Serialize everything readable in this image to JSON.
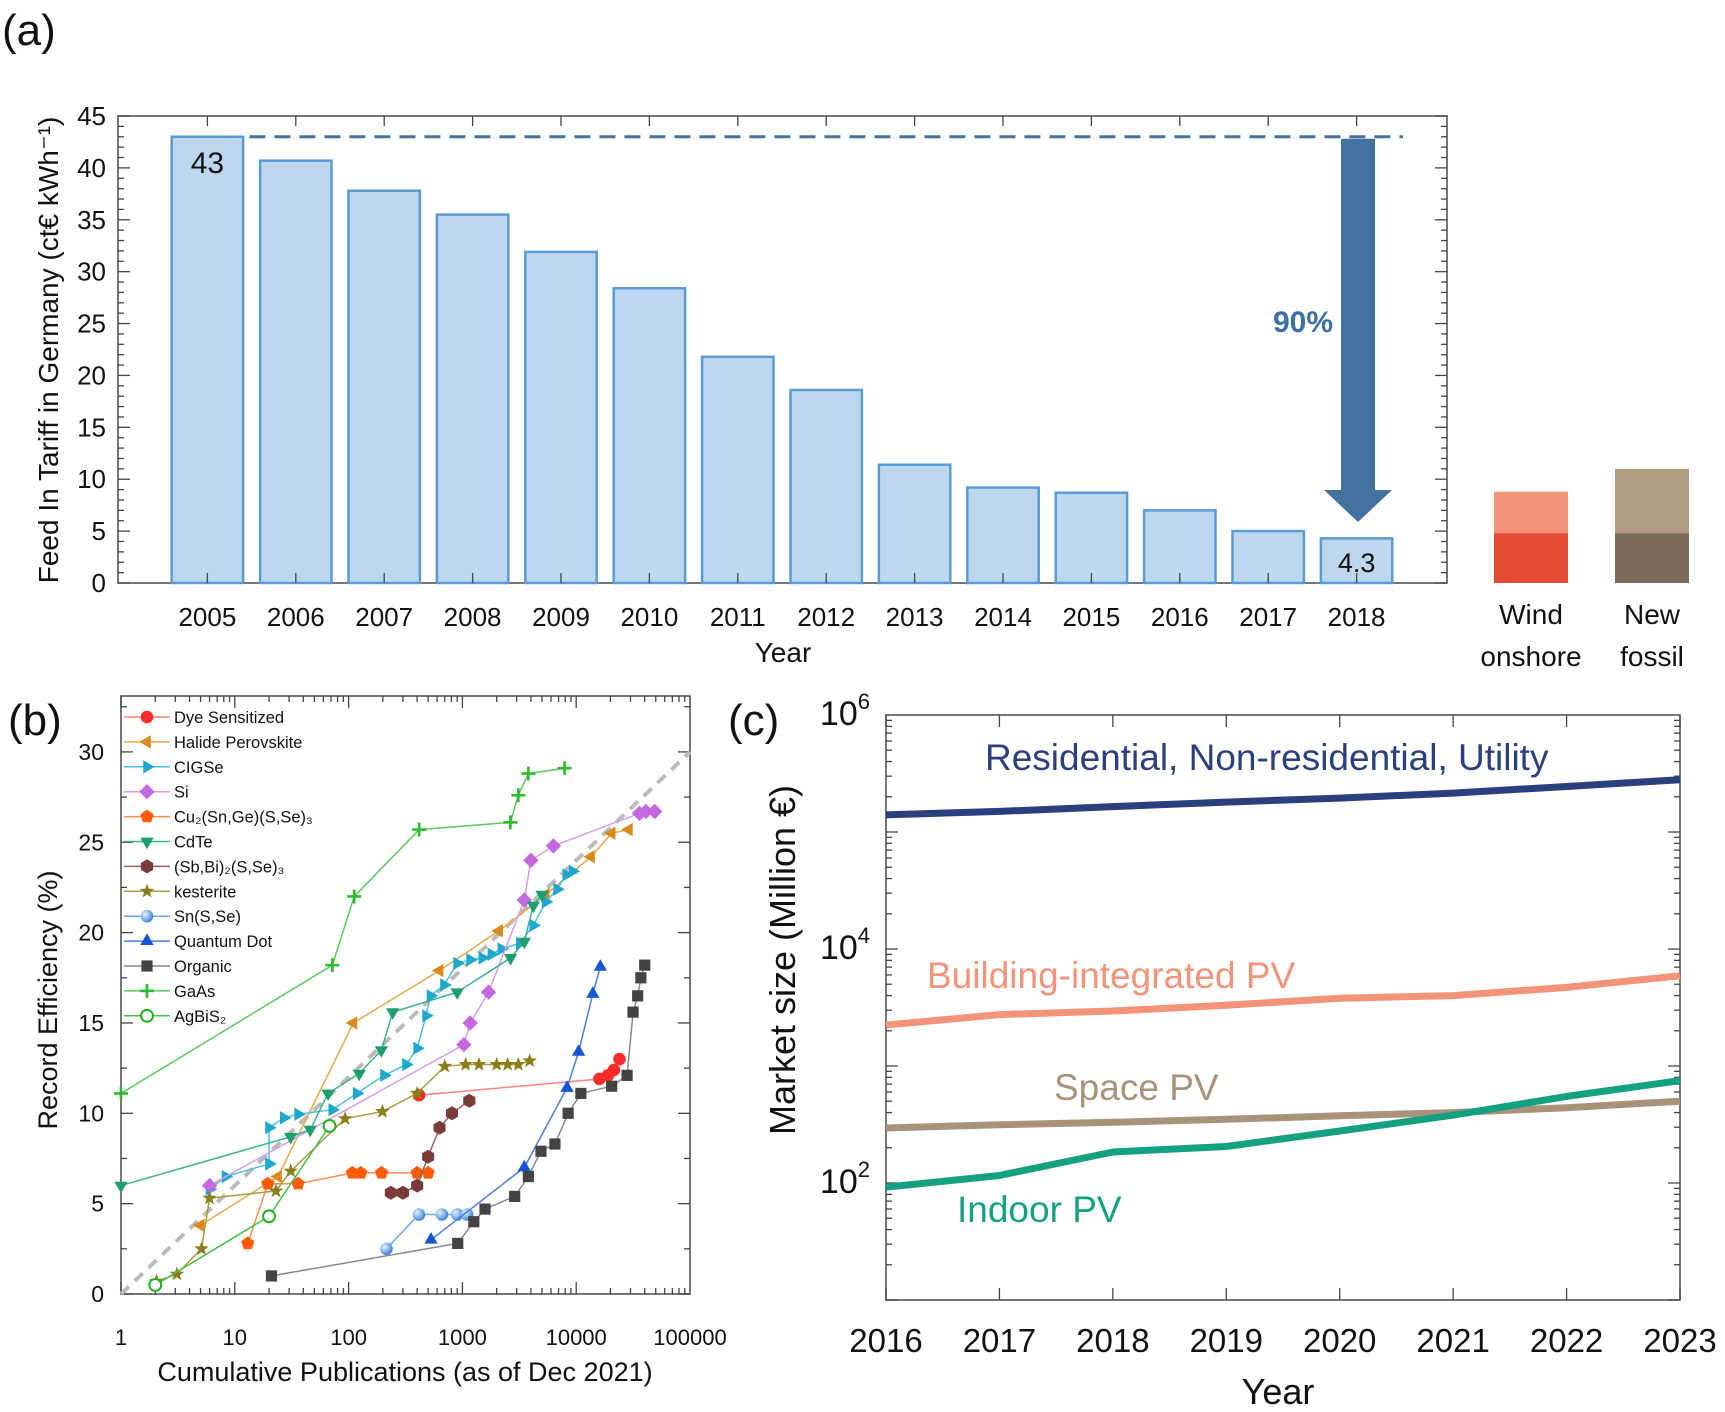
{
  "chart_data": [
    {
      "panel_label": "(a)",
      "type": "bar",
      "xlabel": "Year",
      "ylabel": "Feed In Tariff in Germany (ct€ kWh⁻¹)",
      "ylim": [
        0,
        45
      ],
      "yticks": [
        0,
        5,
        10,
        15,
        20,
        25,
        30,
        35,
        40,
        45
      ],
      "categories": [
        "2005",
        "2006",
        "2007",
        "2008",
        "2009",
        "2010",
        "2011",
        "2012",
        "2013",
        "2014",
        "2015",
        "2016",
        "2017",
        "2018"
      ],
      "values": [
        43,
        40.7,
        37.8,
        35.5,
        31.9,
        28.4,
        21.8,
        18.6,
        11.4,
        9.2,
        8.7,
        7.0,
        5.0,
        4.3
      ],
      "data_labels": {
        "first": "43",
        "last": "4.3"
      },
      "annotation": {
        "text": "90%",
        "type": "down-arrow",
        "from": 43,
        "to": 4.3
      },
      "reference_line": {
        "value": 43,
        "style": "dashed"
      },
      "bar_fill": "#bdd7ee",
      "bar_stroke": "#5b9bd5",
      "arrow_color": "#44729f",
      "comparison_bars": [
        {
          "label_lines": [
            "Wind",
            "onshore"
          ],
          "low": 4.8,
          "high": 8.8,
          "color_low": "#e24a33",
          "color_high": "#f2957b"
        },
        {
          "label_lines": [
            "New",
            "fossil"
          ],
          "low": 4.8,
          "high": 11.0,
          "color_low": "#7b6b5a",
          "color_high": "#b19b82"
        }
      ]
    },
    {
      "panel_label": "(b)",
      "type": "scatter",
      "xlabel": "Cumulative Publications (as of Dec 2021)",
      "ylabel": "Record Efficiency (%)",
      "xscale": "log",
      "xlim": [
        1,
        100000
      ],
      "ylim": [
        0,
        33
      ],
      "xticks": [
        "1",
        "10",
        "100",
        "1000",
        "10000",
        "100000"
      ],
      "yticks": [
        0,
        5,
        10,
        15,
        20,
        25,
        30
      ],
      "legend_position": "top-left",
      "trend_line": {
        "style": "dashed",
        "color": "#bbbbbb",
        "from": [
          1,
          0
        ],
        "to": [
          100000,
          30
        ]
      },
      "series": [
        {
          "name": "Dye Sensitized",
          "marker": "circle",
          "color": "#ff2a2a",
          "line": "#ff8080",
          "points": [
            [
              416,
              11.0
            ],
            [
              16000,
              11.9
            ],
            [
              19000,
              12.1
            ],
            [
              21500,
              12.4
            ],
            [
              24000,
              13.0
            ]
          ]
        },
        {
          "name": "Halide Perovskite",
          "marker": "triangle-left",
          "color": "#d98a1c",
          "line": "#e8a84a",
          "points": [
            [
              5,
              3.8
            ],
            [
              24,
              6.5
            ],
            [
              110,
              15.0
            ],
            [
              630,
              17.9
            ],
            [
              2100,
              20.1
            ],
            [
              5400,
              22.1
            ],
            [
              13500,
              24.2
            ],
            [
              20500,
              25.5
            ],
            [
              29000,
              25.7
            ]
          ]
        },
        {
          "name": "CIGSe",
          "marker": "triangle-right",
          "color": "#1fa8cc",
          "line": "#4cc0dd",
          "points": [
            [
              6,
              5.8
            ],
            [
              8.3,
              6.5
            ],
            [
              20,
              7.2
            ],
            [
              20,
              9.2
            ],
            [
              27,
              9.75
            ],
            [
              36,
              9.95
            ],
            [
              72,
              10.2
            ],
            [
              118,
              11.1
            ],
            [
              205,
              12.1
            ],
            [
              320,
              12.7
            ],
            [
              400,
              13.6
            ],
            [
              480,
              15.4
            ],
            [
              525,
              16.5
            ],
            [
              690,
              17.1
            ],
            [
              900,
              18.3
            ],
            [
              1170,
              18.5
            ],
            [
              1500,
              18.6
            ],
            [
              1800,
              18.8
            ],
            [
              2200,
              19.1
            ],
            [
              3200,
              19.4
            ],
            [
              4200,
              20.4
            ],
            [
              5400,
              21.7
            ],
            [
              6800,
              22.4
            ],
            [
              8200,
              23.2
            ],
            [
              9300,
              23.4
            ]
          ]
        },
        {
          "name": "Si",
          "marker": "diamond",
          "color": "#c468e0",
          "line": "#d79be9",
          "points": [
            [
              6,
              6.0
            ],
            [
              1030,
              13.8
            ],
            [
              1170,
              15.0
            ],
            [
              1700,
              16.7
            ],
            [
              3500,
              21.8
            ],
            [
              4000,
              24.0
            ],
            [
              6300,
              24.8
            ],
            [
              36000,
              26.6
            ],
            [
              41000,
              26.7
            ],
            [
              49000,
              26.7
            ]
          ]
        },
        {
          "name": "Cu₂(Sn,Ge)(S,Se)₃",
          "marker": "pentagon",
          "color": "#ff5c0a",
          "line": "#ff8a4a",
          "points": [
            [
              13,
              2.8
            ],
            [
              19.5,
              6.1
            ],
            [
              36,
              6.1
            ],
            [
              108,
              6.7
            ],
            [
              128,
              6.7
            ],
            [
              195,
              6.7
            ],
            [
              400,
              6.7
            ],
            [
              500,
              6.7
            ]
          ]
        },
        {
          "name": "CdTe",
          "marker": "triangle-down",
          "color": "#1f9e6e",
          "line": "#3bb38a",
          "points": [
            [
              1,
              6.0
            ],
            [
              31,
              8.7
            ],
            [
              46,
              9.1
            ],
            [
              66,
              11.1
            ],
            [
              124,
              12.2
            ],
            [
              194,
              13.5
            ],
            [
              244,
              15.6
            ],
            [
              900,
              16.7
            ],
            [
              2650,
              18.6
            ],
            [
              3500,
              19.5
            ],
            [
              4200,
              21.5
            ],
            [
              5000,
              22.1
            ]
          ]
        },
        {
          "name": "(Sb,Bi)₂(S,Se)₃",
          "marker": "hexagon",
          "color": "#7b3b3b",
          "line": "#9a6060",
          "points": [
            [
              235,
              5.6
            ],
            [
              300,
              5.6
            ],
            [
              400,
              6.0
            ],
            [
              500,
              7.6
            ],
            [
              630,
              9.2
            ],
            [
              810,
              10.0
            ],
            [
              1150,
              10.7
            ]
          ]
        },
        {
          "name": "kesterite",
          "marker": "star",
          "color": "#8a7e1a",
          "line": "#a89c40",
          "points": [
            [
              2.05,
              0.7
            ],
            [
              3.1,
              1.1
            ],
            [
              5.1,
              2.5
            ],
            [
              6,
              5.3
            ],
            [
              23,
              5.7
            ],
            [
              31,
              6.8
            ],
            [
              93,
              9.7
            ],
            [
              198,
              10.1
            ],
            [
              400,
              11.1
            ],
            [
              700,
              12.6
            ],
            [
              1070,
              12.7
            ],
            [
              1400,
              12.7
            ],
            [
              2000,
              12.7
            ],
            [
              2500,
              12.7
            ],
            [
              3100,
              12.7
            ],
            [
              3900,
              12.9
            ]
          ]
        },
        {
          "name": "Sn(S,Se)",
          "marker": "sphere",
          "color": "#4a90d9",
          "line": "#6aa6e0",
          "points": [
            [
              215,
              2.5
            ],
            [
              415,
              4.4
            ],
            [
              660,
              4.4
            ],
            [
              900,
              4.4
            ],
            [
              1100,
              4.4
            ]
          ]
        },
        {
          "name": "Quantum Dot",
          "marker": "triangle-up",
          "color": "#1456d6",
          "line": "#4a7fe0",
          "points": [
            [
              530,
              3.0
            ],
            [
              3500,
              7.0
            ],
            [
              8300,
              11.4
            ],
            [
              10500,
              13.4
            ],
            [
              14000,
              16.6
            ],
            [
              16300,
              18.1
            ]
          ]
        },
        {
          "name": "Organic",
          "marker": "square",
          "color": "#444444",
          "line": "#888888",
          "points": [
            [
              21,
              1.0
            ],
            [
              910,
              2.8
            ],
            [
              1260,
              4.0
            ],
            [
              1580,
              4.7
            ],
            [
              2880,
              5.4
            ],
            [
              3800,
              6.5
            ],
            [
              4900,
              7.9
            ],
            [
              6500,
              8.3
            ],
            [
              8500,
              10.0
            ],
            [
              11000,
              11.1
            ],
            [
              20500,
              11.5
            ],
            [
              28000,
              12.1
            ],
            [
              31600,
              15.6
            ],
            [
              34700,
              16.5
            ],
            [
              37000,
              17.5
            ],
            [
              40000,
              18.2
            ]
          ]
        },
        {
          "name": "GaAs",
          "marker": "plus",
          "color": "#2eb82e",
          "line": "#5ac85a",
          "points": [
            [
              1,
              11.1
            ],
            [
              72,
              18.2
            ],
            [
              112,
              22.0
            ],
            [
              417,
              25.7
            ],
            [
              2640,
              26.1
            ],
            [
              3100,
              27.6
            ],
            [
              3800,
              28.8
            ],
            [
              7900,
              29.1
            ]
          ]
        },
        {
          "name": "AgBiS₂",
          "marker": "open-circle",
          "color": "#22b022",
          "line": "#44c044",
          "points": [
            [
              2,
              0.5
            ],
            [
              20,
              4.3
            ],
            [
              68,
              9.3
            ]
          ]
        }
      ]
    },
    {
      "panel_label": "(c)",
      "type": "line",
      "xlabel": "Year",
      "ylabel": "Market size (Million €)",
      "yscale": "log",
      "ylim": [
        10,
        1000000
      ],
      "x": [
        2016,
        2017,
        2018,
        2019,
        2020,
        2021,
        2022,
        2023
      ],
      "xticks": [
        "2016",
        "2017",
        "2018",
        "2019",
        "2020",
        "2021",
        "2022",
        "2023"
      ],
      "yticks": [
        {
          "base": "10",
          "exp": "2",
          "value": 100
        },
        {
          "base": "10",
          "exp": "4",
          "value": 10000
        },
        {
          "base": "10",
          "exp": "6",
          "value": 1000000
        }
      ],
      "series": [
        {
          "name": "Residential, Non-residential, Utility",
          "color": "#2b3f7e",
          "values": [
            140000,
            150000,
            165000,
            180000,
            195000,
            215000,
            245000,
            280000
          ]
        },
        {
          "name": "Building-integrated PV",
          "color": "#f2937a",
          "values": [
            2240,
            2750,
            2950,
            3300,
            3800,
            4000,
            4700,
            5900
          ]
        },
        {
          "name": "Space PV",
          "color": "#a8927a",
          "values": [
            295,
            315,
            330,
            350,
            375,
            400,
            440,
            500
          ]
        },
        {
          "name": "Indoor PV",
          "color": "#14a182",
          "values": [
            92,
            116,
            184,
            205,
            278,
            380,
            550,
            750
          ]
        }
      ]
    }
  ]
}
